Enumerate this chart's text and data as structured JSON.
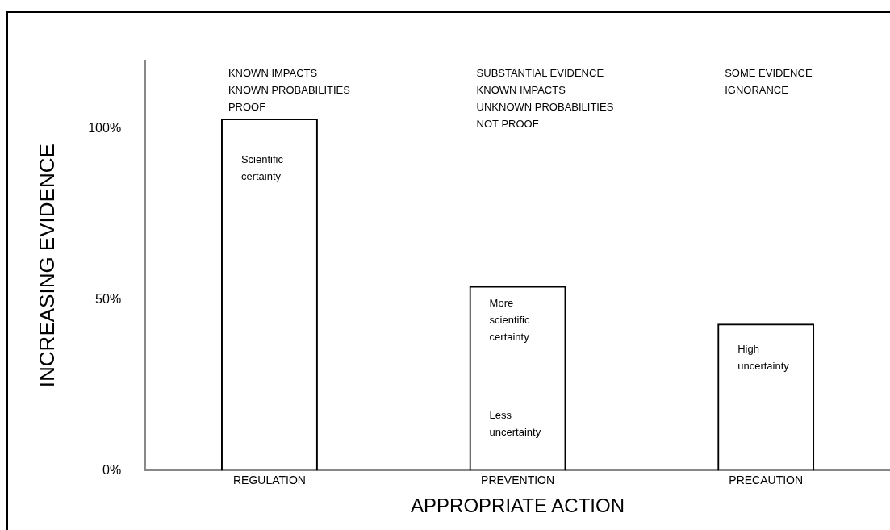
{
  "chart_data": {
    "type": "bar",
    "xlabel": "APPROPRIATE ACTION",
    "ylabel": "INCREASING EVIDENCE",
    "categories": [
      "REGULATION",
      "PREVENTION",
      "PRECAUTION"
    ],
    "values": [
      103,
      54,
      43
    ],
    "color": "#000000",
    "ylim": [
      0,
      120
    ],
    "yticks": [
      {
        "value": 0,
        "label": "0%"
      },
      {
        "value": 50,
        "label": "50%"
      },
      {
        "value": 100,
        "label": "100%"
      }
    ],
    "grid": false,
    "legend": false,
    "annotations": [
      "KNOWN IMPACTS\nKNOWN PROBABILITIES\nPROOF",
      "SUBSTANTIAL EVIDENCE\nKNOWN IMPACTS\nUNKNOWN PROBABILITIES\nNOT PROOF",
      "SOME EVIDENCE\nIGNORANCE",
      "Scientific\ncertainty",
      "More\nscientific\ncertainty",
      "Less\nuncertainty",
      "High\nuncertainty"
    ]
  }
}
